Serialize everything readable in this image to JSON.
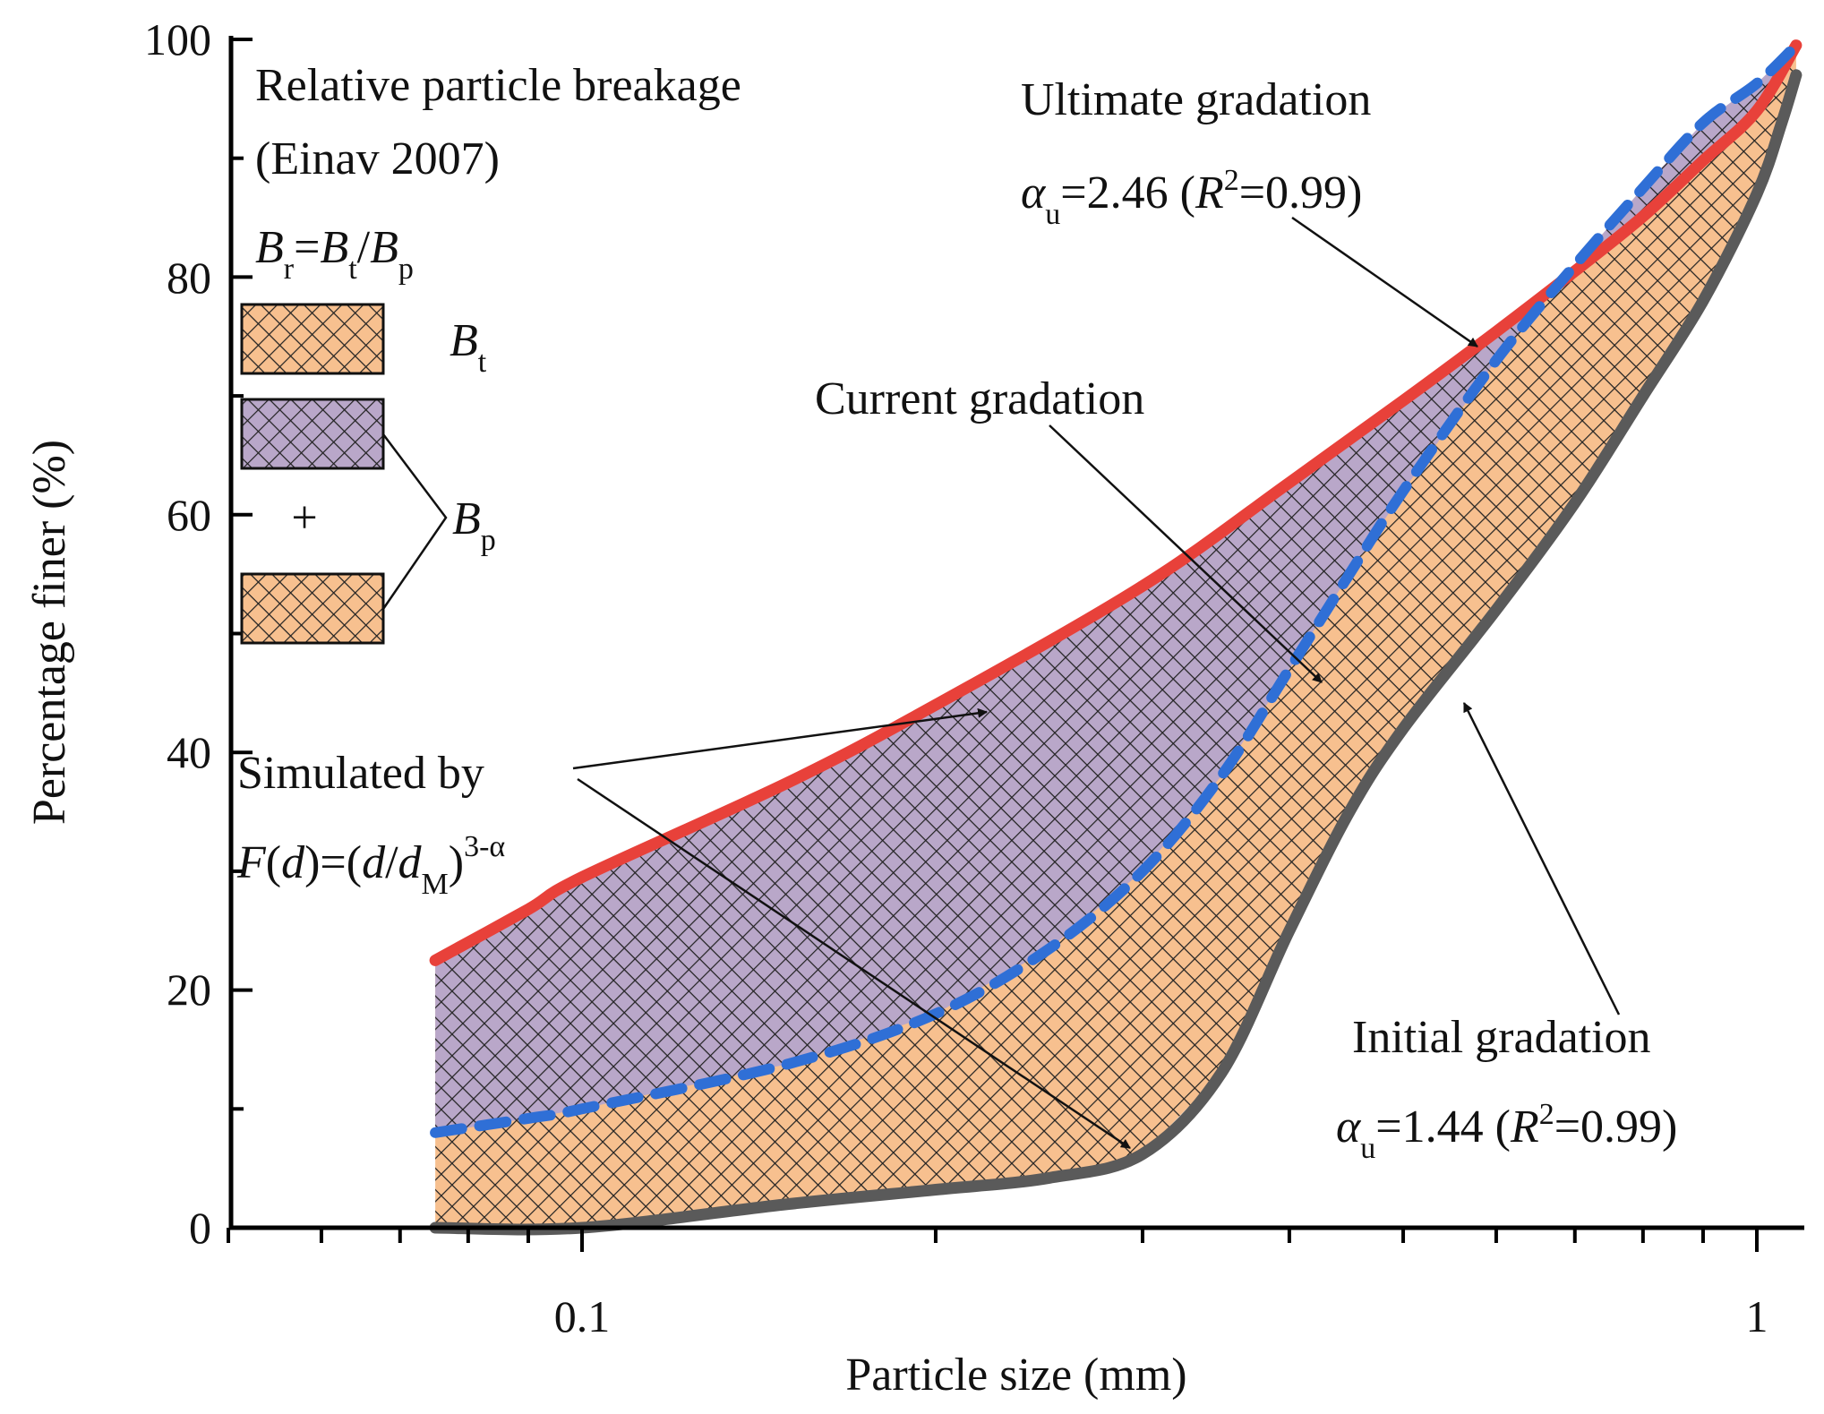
{
  "chart_data": {
    "type": "area",
    "xlabel": "Particle size (mm)",
    "ylabel": "Percentage finer (%)",
    "xscale": "log",
    "xlim": [
      0.05,
      1.1
    ],
    "ylim": [
      0,
      100
    ],
    "x_ticks": [
      {
        "value": 0.1,
        "label": "0.1"
      },
      {
        "value": 1,
        "label": "1"
      }
    ],
    "y_ticks": [
      {
        "value": 0,
        "label": "0"
      },
      {
        "value": 20,
        "label": "20"
      },
      {
        "value": 40,
        "label": "40"
      },
      {
        "value": 60,
        "label": "60"
      },
      {
        "value": 80,
        "label": "80"
      },
      {
        "value": 100,
        "label": "100"
      }
    ],
    "series": [
      {
        "name": "Ultimate gradation",
        "color": "#e8413a",
        "style": "solid",
        "points": [
          [
            0.075,
            22.5
          ],
          [
            0.09,
            26.8
          ],
          [
            0.1,
            29.5
          ],
          [
            0.15,
            37.5
          ],
          [
            0.2,
            44
          ],
          [
            0.3,
            54
          ],
          [
            0.4,
            62.7
          ],
          [
            0.5,
            69.6
          ],
          [
            0.6,
            75.4
          ],
          [
            0.7,
            80.5
          ],
          [
            0.8,
            85.1
          ],
          [
            0.9,
            89.8
          ],
          [
            1.0,
            94
          ],
          [
            1.08,
            99.5
          ]
        ]
      },
      {
        "name": "Current gradation",
        "color": "#2f6fd6",
        "style": "dashed",
        "points": [
          [
            0.075,
            8
          ],
          [
            0.09,
            9.2
          ],
          [
            0.1,
            10
          ],
          [
            0.15,
            13.8
          ],
          [
            0.2,
            18
          ],
          [
            0.25,
            23.5
          ],
          [
            0.3,
            30
          ],
          [
            0.35,
            38
          ],
          [
            0.4,
            47
          ],
          [
            0.45,
            55
          ],
          [
            0.5,
            62
          ],
          [
            0.6,
            73
          ],
          [
            0.7,
            81
          ],
          [
            0.8,
            87.5
          ],
          [
            0.9,
            93
          ],
          [
            1.0,
            96.3
          ],
          [
            1.08,
            99.5
          ]
        ]
      },
      {
        "name": "Initial gradation",
        "color": "#5a5a5a",
        "style": "solid",
        "points": [
          [
            0.075,
            0
          ],
          [
            0.1,
            0
          ],
          [
            0.15,
            2
          ],
          [
            0.2,
            3.2
          ],
          [
            0.25,
            4.2
          ],
          [
            0.3,
            6.2
          ],
          [
            0.35,
            13
          ],
          [
            0.4,
            25
          ],
          [
            0.45,
            35
          ],
          [
            0.5,
            42
          ],
          [
            0.6,
            52
          ],
          [
            0.7,
            61
          ],
          [
            0.8,
            70
          ],
          [
            0.9,
            78
          ],
          [
            1.0,
            87
          ],
          [
            1.05,
            93
          ],
          [
            1.08,
            97
          ]
        ]
      }
    ],
    "fills": [
      {
        "name": "B_t region",
        "between": [
          "Ultimate gradation",
          "Initial gradation"
        ],
        "color": "#f7c08f",
        "hatch": "crosshatch"
      },
      {
        "name": "B_p upper region",
        "between": [
          "Ultimate gradation",
          "Current gradation"
        ],
        "color": "#b9a7c9",
        "hatch": "crosshatch"
      }
    ],
    "hatch_color": "#222222",
    "annotations": {
      "legend_title_1": "Relative particle breakage",
      "legend_title_2": "(Einav 2007)",
      "legend_formula_B": "B",
      "legend_formula_r": "r",
      "legend_formula_eq": "=",
      "legend_formula_Bt": "B",
      "legend_formula_t": "t",
      "legend_formula_slash": "/",
      "legend_formula_Bp": "B",
      "legend_formula_p": "p",
      "legend_bt_B": "B",
      "legend_bt_sub": "t",
      "legend_plus": "+",
      "legend_bp_B": "B",
      "legend_bp_sub": "p",
      "ultimate_title": "Ultimate gradation",
      "ultimate_alpha": "α",
      "ultimate_sub": "u",
      "ultimate_eq": "=2.46 (",
      "ultimate_R": "R",
      "ultimate_sup": "2",
      "ultimate_tail": "=0.99)",
      "current_title": "Current gradation",
      "initial_title": "Initial gradation",
      "initial_alpha": "α",
      "initial_sub": "u",
      "initial_eq": "=1.44 (",
      "initial_R": "R",
      "initial_sup": "2",
      "initial_tail": "=0.99)",
      "sim_title": "Simulated by",
      "sim_F": "F",
      "sim_open": "(",
      "sim_d": "d",
      "sim_mid": ")=(",
      "sim_d2": "d",
      "sim_slash": "/",
      "sim_d3": "d",
      "sim_M": "M",
      "sim_close": ")",
      "sim_exp": "3-α"
    }
  }
}
